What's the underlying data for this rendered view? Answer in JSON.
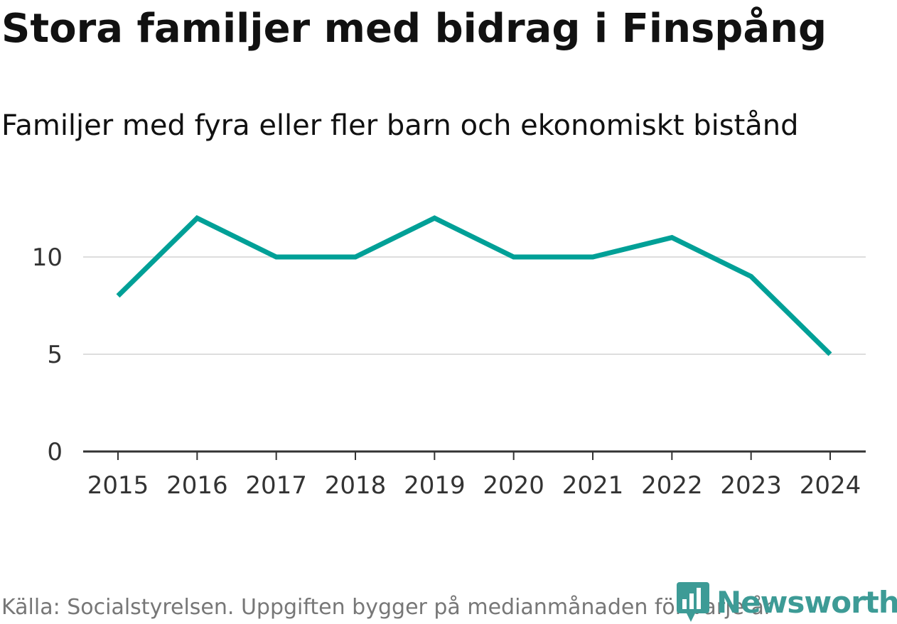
{
  "header": {
    "title": "Stora familjer med bidrag i Finspång",
    "subtitle": "Familjer med fyra eller fler barn och ekonomiskt bistånd"
  },
  "footer": {
    "source": "Källa: Socialstyrelsen. Uppgiften bygger på medianmånaden för varje år",
    "brand": "Newsworthy",
    "brand_icon": "newsworthy-logo-icon"
  },
  "colors": {
    "line": "#00a097",
    "grid": "#dddddd",
    "axis": "#333333",
    "brand": "#3d9b96"
  },
  "chart_data": {
    "type": "line",
    "title": "Stora familjer med bidrag i Finspång",
    "subtitle": "Familjer med fyra eller fler barn och ekonomiskt bistånd",
    "xlabel": "",
    "ylabel": "",
    "categories": [
      "2015",
      "2016",
      "2017",
      "2018",
      "2019",
      "2020",
      "2021",
      "2022",
      "2023",
      "2024"
    ],
    "series": [
      {
        "name": "Familjer med fyra eller fler barn och ekonomiskt bistånd",
        "values": [
          8,
          12,
          10,
          10,
          12,
          10,
          10,
          11,
          9,
          5
        ]
      }
    ],
    "yticks": [
      0,
      5,
      10
    ],
    "ylim": [
      0,
      13
    ],
    "grid": true,
    "legend": "none"
  }
}
